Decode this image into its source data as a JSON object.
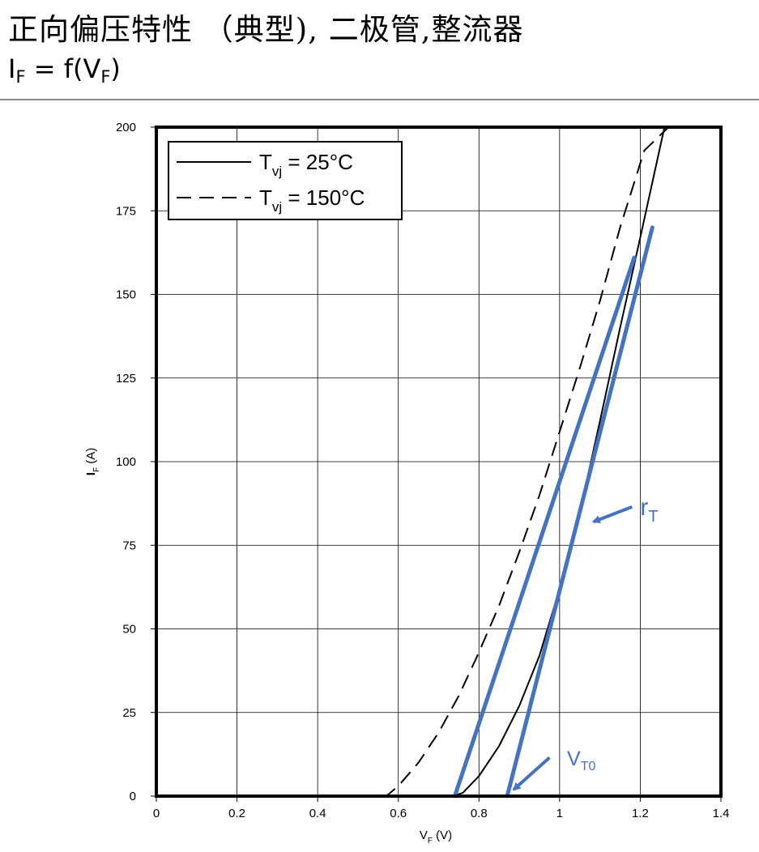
{
  "header": {
    "title": "正向偏压特性 （典型), 二极管,整流器",
    "subtitle_main": "I",
    "subtitle_sub1": "F",
    "subtitle_mid": " = f(V",
    "subtitle_sub2": "F",
    "subtitle_end": ")"
  },
  "chart_data": {
    "type": "line",
    "xlabel": "V",
    "xlabel_sub": "F",
    "xlabel_unit": " (V)",
    "ylabel": "I",
    "ylabel_sub": "F",
    "ylabel_unit": " (A)",
    "xlim": [
      0,
      1.4
    ],
    "ylim": [
      0,
      200
    ],
    "x_ticks": [
      0,
      0.2,
      0.4,
      0.6,
      0.8,
      1.0,
      1.2,
      1.4
    ],
    "x_tick_labels": [
      "0",
      "0.2",
      "0.4",
      "0.6",
      "0.8",
      "1",
      "1.2",
      "1.4"
    ],
    "y_ticks": [
      0,
      25,
      50,
      75,
      100,
      125,
      150,
      175,
      200
    ],
    "y_tick_labels": [
      "0",
      "25",
      "50",
      "75",
      "100",
      "125",
      "150",
      "175",
      "200"
    ],
    "grid": true,
    "legend_position": "top-left",
    "series": [
      {
        "name": "T",
        "name_sub": "vj",
        "name_rest": " = 25°C",
        "style": "solid",
        "color": "#000000",
        "points": [
          [
            0.0,
            0
          ],
          [
            0.735,
            0
          ],
          [
            0.76,
            1
          ],
          [
            0.8,
            6
          ],
          [
            0.85,
            15
          ],
          [
            0.9,
            27
          ],
          [
            0.95,
            42
          ],
          [
            1.0,
            62
          ],
          [
            1.05,
            85
          ],
          [
            1.1,
            112
          ],
          [
            1.15,
            140
          ],
          [
            1.2,
            167
          ],
          [
            1.26,
            200
          ]
        ]
      },
      {
        "name": "T",
        "name_sub": "vj",
        "name_rest": " = 150°C",
        "style": "dashed",
        "color": "#000000",
        "points": [
          [
            0.0,
            0
          ],
          [
            0.57,
            0
          ],
          [
            0.6,
            3
          ],
          [
            0.65,
            10
          ],
          [
            0.7,
            19
          ],
          [
            0.75,
            30
          ],
          [
            0.8,
            43
          ],
          [
            0.85,
            57
          ],
          [
            0.9,
            73
          ],
          [
            0.95,
            90
          ],
          [
            1.0,
            109
          ],
          [
            1.05,
            128
          ],
          [
            1.1,
            148
          ],
          [
            1.15,
            170
          ],
          [
            1.21,
            193
          ],
          [
            1.27,
            200
          ]
        ]
      }
    ],
    "overlay_lines": [
      {
        "color": "#4472c4",
        "points": [
          [
            0.74,
            0
          ],
          [
            1.185,
            161
          ]
        ]
      },
      {
        "color": "#4472c4",
        "points": [
          [
            0.87,
            0
          ],
          [
            1.23,
            170
          ]
        ]
      }
    ],
    "annotations": [
      {
        "label": "r",
        "label_sub": "T",
        "arrow_from": [
          1.24,
          86
        ],
        "arrow_to": [
          1.06,
          83
        ]
      },
      {
        "label": "V",
        "label_sub": "T0",
        "arrow_from": [
          0.995,
          12
        ],
        "arrow_to": [
          0.87,
          0
        ]
      }
    ]
  }
}
